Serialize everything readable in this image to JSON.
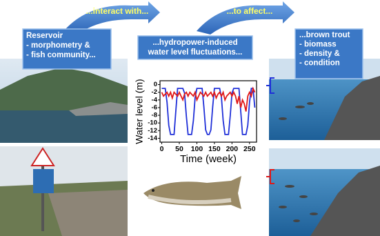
{
  "arrows": [
    {
      "label": "...interact with..."
    },
    {
      "label": "...to affect..."
    }
  ],
  "boxes": [
    {
      "lines": [
        "Reservoir",
        "- morphometry &",
        "- fish community..."
      ]
    },
    {
      "lines": [
        "...hydropower-induced",
        "water level fluctuations..."
      ]
    },
    {
      "lines": [
        "...brown trout",
        "- biomass",
        "- density &",
        "- condition"
      ]
    }
  ],
  "chart_data": {
    "type": "line",
    "xlabel": "Time (week)",
    "ylabel": "Water level (m)",
    "x": [
      0,
      5,
      10,
      15,
      20,
      25,
      30,
      35,
      40,
      45,
      50,
      55,
      60,
      65,
      70,
      75,
      80,
      85,
      90,
      95,
      100,
      105,
      110,
      115,
      120,
      125,
      130,
      135,
      140,
      145,
      150,
      155,
      160,
      165,
      170,
      175,
      180,
      185,
      190,
      195,
      200,
      205,
      210,
      215,
      220,
      225,
      230,
      235,
      240,
      245,
      250,
      255,
      260,
      265
    ],
    "series": [
      {
        "color": "#1f2fd8",
        "values": [
          -1,
          -1,
          -1,
          -4.6,
          -10.6,
          -13,
          -13,
          -13,
          -7,
          -1,
          -1,
          -1,
          -1,
          -2.2,
          -8.2,
          -13,
          -13,
          -13,
          -9.4,
          -3.4,
          -1,
          -1,
          -1,
          -1,
          -5.8,
          -11.8,
          -13,
          -13,
          -11.8,
          -5.8,
          -1,
          -1,
          -1,
          -1,
          -3.4,
          -9.4,
          -13,
          -13,
          -13,
          -8.2,
          -2.2,
          -1,
          -1,
          -1,
          -1,
          -7,
          -13,
          -13,
          -13,
          -10.6,
          -4.6,
          -1,
          -1,
          -6
        ]
      },
      {
        "color": "#e01818",
        "values": [
          -2,
          -3,
          -2.5,
          -2,
          -3,
          -2,
          -3.5,
          -2,
          -2.5,
          -3,
          -2,
          -3,
          -4,
          -2.5,
          -2,
          -3,
          -2,
          -2.5,
          -3,
          -2,
          -4,
          -3,
          -2,
          -2.5,
          -3,
          -2,
          -3,
          -2.5,
          -2,
          -3,
          -2,
          -3.5,
          -2.5,
          -2,
          -3,
          -2,
          -4,
          -3,
          -2.5,
          -2,
          -3,
          -2,
          -3,
          -5,
          -3,
          -6,
          -4,
          -5,
          -7,
          -3,
          -2,
          -3,
          -1,
          -2
        ]
      }
    ],
    "xlim": [
      -5,
      270
    ],
    "ylim": [
      -15,
      1
    ],
    "xticks": [
      0,
      50,
      100,
      150,
      200,
      250
    ],
    "yticks": [
      0,
      -2,
      -4,
      -6,
      -8,
      -10,
      -12,
      -14
    ]
  }
}
